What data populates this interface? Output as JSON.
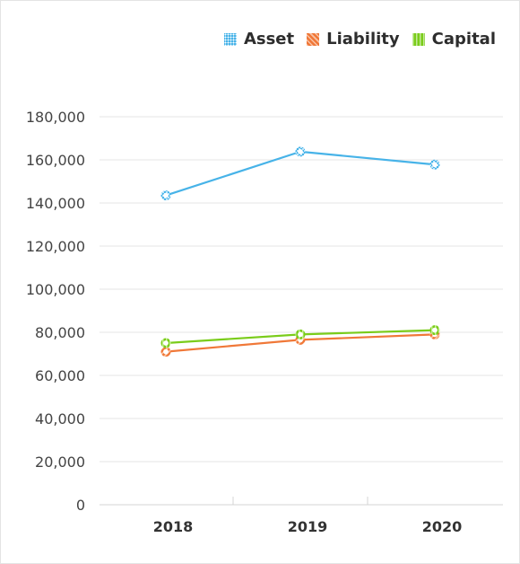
{
  "chart_data": {
    "type": "line",
    "categories": [
      "2018",
      "2019",
      "2020"
    ],
    "series": [
      {
        "name": "Asset",
        "values": [
          143500,
          163800,
          157800
        ],
        "color": "#47b3e8"
      },
      {
        "name": "Liability",
        "values": [
          71000,
          76500,
          79000
        ],
        "color": "#f07838"
      },
      {
        "name": "Capital",
        "values": [
          75000,
          79000,
          81000
        ],
        "color": "#7acc1a"
      }
    ],
    "ylim": [
      0,
      180000
    ],
    "yticks": [
      0,
      20000,
      40000,
      60000,
      80000,
      100000,
      120000,
      140000,
      160000,
      180000
    ],
    "ytick_labels": [
      "0",
      "20,000",
      "40,000",
      "60,000",
      "80,000",
      "100,000",
      "120,000",
      "140,000",
      "160,000",
      "180,000"
    ],
    "legend_position": "top-right",
    "grid": true,
    "title": "",
    "xlabel": "",
    "ylabel": ""
  }
}
